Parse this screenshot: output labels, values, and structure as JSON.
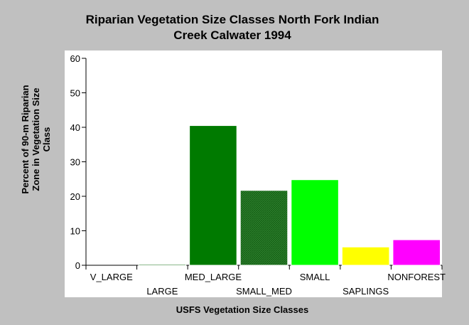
{
  "chart_data": {
    "type": "bar",
    "title": "Riparian Vegetation Size Classes North Fork Indian Creek Calwater 1994",
    "title_lines": [
      "Riparian Vegetation Size Classes North Fork Indian",
      "Creek Calwater 1994"
    ],
    "xlabel": "USFS Vegetation Size Classes",
    "ylabel": "Percent of 90-m Riparian Zone in Vegetation Size Class",
    "ylabel_lines": [
      "Percent of 90-m Riparian",
      "Zone in Vegetation Size",
      "Class"
    ],
    "categories": [
      "V_LARGE",
      "LARGE",
      "MED_LARGE",
      "SMALL_MED",
      "SMALL",
      "SAPLINGS",
      "NONFOREST"
    ],
    "values": [
      0,
      0.3,
      40.5,
      21.7,
      24.8,
      5.3,
      7.4
    ],
    "colors": [
      "#006400",
      "#006400",
      "#007a00",
      "#1a7a1a",
      "#00ff00",
      "#ffff00",
      "#ff00ff"
    ],
    "ylim": [
      0,
      60
    ],
    "yticks": [
      0,
      10,
      20,
      30,
      40,
      50,
      60
    ],
    "grid": false,
    "legend": "none"
  }
}
